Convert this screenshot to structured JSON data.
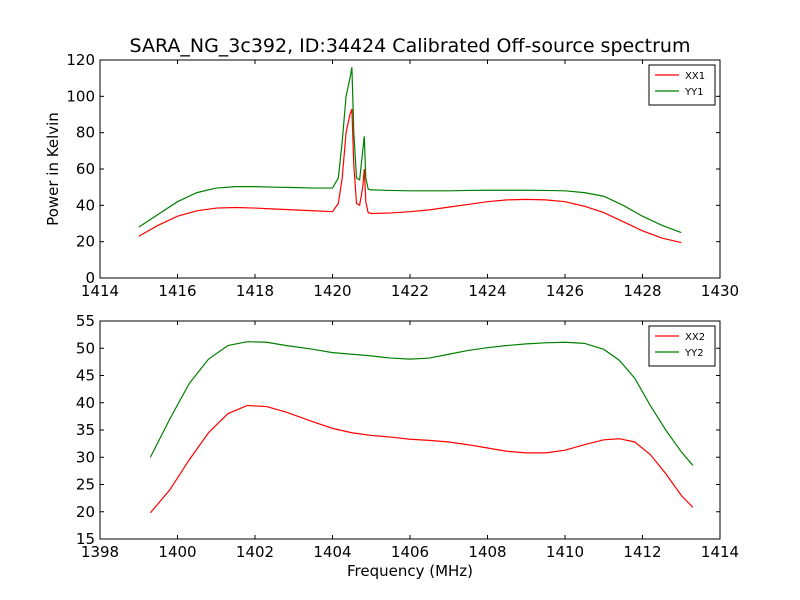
{
  "chart_data": [
    {
      "type": "line",
      "title": "SARA_NG_3c392, ID:34424 Calibrated Off-source spectrum",
      "xlabel": "",
      "ylabel": "Power in Kelvin",
      "xlim": [
        1414,
        1430
      ],
      "ylim": [
        0,
        120
      ],
      "xticks": [
        1414,
        1416,
        1418,
        1420,
        1422,
        1424,
        1426,
        1428,
        1430
      ],
      "yticks": [
        0,
        20,
        40,
        60,
        80,
        100,
        120
      ],
      "grid": false,
      "legend": "top-right",
      "series": [
        {
          "name": "XX1",
          "color": "#ff0000",
          "x": [
            1415.0,
            1415.5,
            1416.0,
            1416.5,
            1417.0,
            1417.5,
            1418.0,
            1418.5,
            1419.0,
            1419.5,
            1420.0,
            1420.15,
            1420.25,
            1420.35,
            1420.45,
            1420.5,
            1420.55,
            1420.62,
            1420.7,
            1420.78,
            1420.82,
            1420.86,
            1420.92,
            1421.0,
            1421.5,
            1422.0,
            1422.5,
            1423.0,
            1423.5,
            1424.0,
            1424.5,
            1425.0,
            1425.5,
            1426.0,
            1426.5,
            1427.0,
            1427.5,
            1428.0,
            1428.5,
            1429.0
          ],
          "y": [
            23,
            29,
            34,
            37,
            38.5,
            38.8,
            38.5,
            38,
            37.5,
            37,
            36.5,
            41,
            55,
            80,
            90,
            93,
            62,
            41,
            40,
            50,
            60,
            42,
            36,
            35.5,
            35.8,
            36.5,
            37.5,
            39,
            40.5,
            42,
            43,
            43.3,
            43,
            42,
            39.5,
            36,
            31,
            26,
            22,
            19.5
          ]
        },
        {
          "name": "YY1",
          "color": "#008000",
          "x": [
            1415.0,
            1415.5,
            1416.0,
            1416.5,
            1417.0,
            1417.5,
            1418.0,
            1418.5,
            1419.0,
            1419.5,
            1420.0,
            1420.15,
            1420.25,
            1420.35,
            1420.45,
            1420.5,
            1420.55,
            1420.62,
            1420.7,
            1420.78,
            1420.82,
            1420.86,
            1420.92,
            1421.0,
            1421.5,
            1422.0,
            1422.5,
            1423.0,
            1423.5,
            1424.0,
            1424.5,
            1425.0,
            1425.5,
            1426.0,
            1426.5,
            1427.0,
            1427.5,
            1428.0,
            1428.5,
            1429.0
          ],
          "y": [
            28,
            35,
            42,
            47,
            49.5,
            50.3,
            50.3,
            50,
            49.8,
            49.5,
            49.5,
            55,
            75,
            100,
            110,
            116,
            80,
            55,
            54,
            70,
            78,
            55,
            49,
            48.5,
            48.2,
            48,
            48,
            48,
            48.2,
            48.3,
            48.3,
            48.3,
            48.2,
            48,
            47,
            45,
            40,
            34,
            29,
            25
          ]
        }
      ]
    },
    {
      "type": "line",
      "title": "",
      "xlabel": "Frequency (MHz)",
      "ylabel": "",
      "xlim": [
        1398,
        1414
      ],
      "ylim": [
        15,
        55
      ],
      "xticks": [
        1398,
        1400,
        1402,
        1404,
        1406,
        1408,
        1410,
        1412,
        1414
      ],
      "yticks": [
        15,
        20,
        25,
        30,
        35,
        40,
        45,
        50,
        55
      ],
      "grid": false,
      "legend": "top-right",
      "series": [
        {
          "name": "XX2",
          "color": "#ff0000",
          "x": [
            1399.3,
            1399.8,
            1400.3,
            1400.8,
            1401.3,
            1401.8,
            1402.3,
            1402.8,
            1403.5,
            1404.0,
            1404.5,
            1405.0,
            1405.5,
            1406.0,
            1406.5,
            1407.0,
            1407.5,
            1408.0,
            1408.5,
            1409.0,
            1409.5,
            1410.0,
            1410.5,
            1411.0,
            1411.4,
            1411.8,
            1412.2,
            1412.6,
            1413.0,
            1413.3
          ],
          "y": [
            19.8,
            24,
            29.5,
            34.5,
            38,
            39.5,
            39.3,
            38.3,
            36.5,
            35.3,
            34.5,
            34,
            33.7,
            33.3,
            33.1,
            32.8,
            32.3,
            31.7,
            31.1,
            30.8,
            30.8,
            31.3,
            32.3,
            33.2,
            33.4,
            32.8,
            30.5,
            27,
            23,
            20.8
          ]
        },
        {
          "name": "YY2",
          "color": "#008000",
          "x": [
            1399.3,
            1399.8,
            1400.3,
            1400.8,
            1401.3,
            1401.8,
            1402.3,
            1402.8,
            1403.5,
            1404.0,
            1404.5,
            1405.0,
            1405.5,
            1406.0,
            1406.5,
            1407.0,
            1407.5,
            1408.0,
            1408.5,
            1409.0,
            1409.5,
            1410.0,
            1410.5,
            1411.0,
            1411.4,
            1411.8,
            1412.2,
            1412.6,
            1413.0,
            1413.3
          ],
          "y": [
            30,
            37,
            43.5,
            48,
            50.5,
            51.2,
            51.1,
            50.5,
            49.8,
            49.2,
            48.9,
            48.6,
            48.2,
            48.0,
            48.2,
            48.9,
            49.6,
            50.1,
            50.5,
            50.8,
            51.0,
            51.1,
            50.9,
            49.8,
            47.8,
            44.5,
            39.5,
            35,
            31,
            28.5
          ]
        }
      ]
    }
  ]
}
